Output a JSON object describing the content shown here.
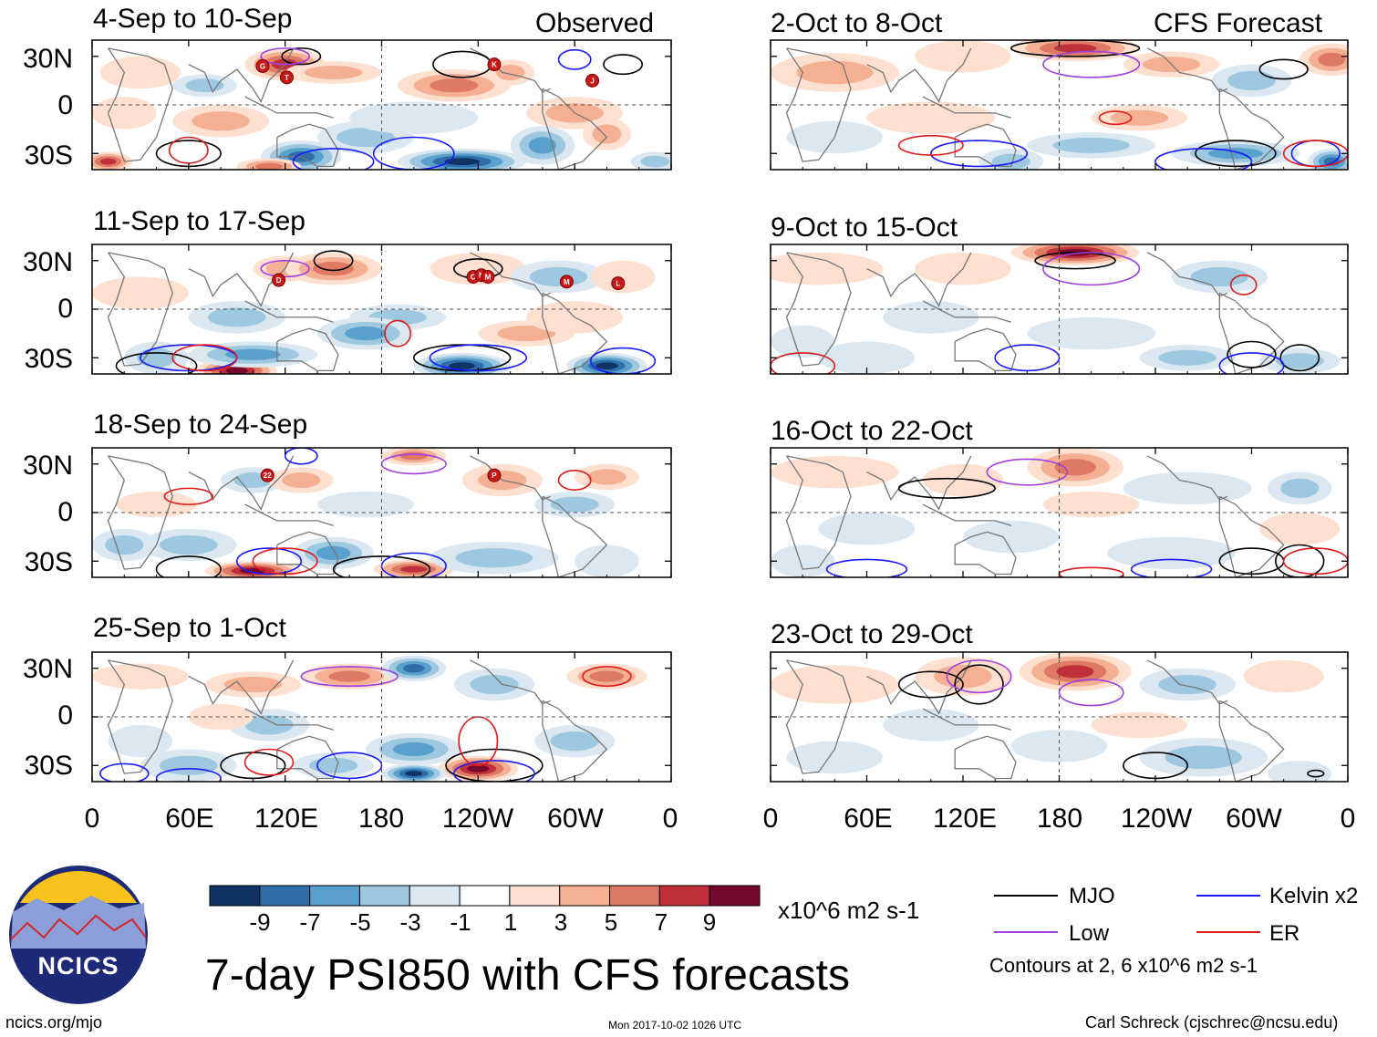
{
  "colors": {
    "positive": [
      "#fde0d0",
      "#f5b093",
      "#de7a63",
      "#c0303a",
      "#75082c"
    ],
    "negative": [
      "#dbe8f2",
      "#9ec8e0",
      "#5aa0cc",
      "#2e6ea9",
      "#0d3463"
    ],
    "mjo": "#000000",
    "kelvin": "#1a1aff",
    "low": "#a040e0",
    "er": "#e01a1a",
    "coast": "#777777"
  },
  "chart_data": [
    {
      "type": "heatmap",
      "id": "obs1",
      "title": "4-Sep to 10-Sep",
      "label": "Observed",
      "column": "Observed"
    },
    {
      "type": "heatmap",
      "id": "obs2",
      "title": "11-Sep to 17-Sep",
      "label": "",
      "column": "Observed"
    },
    {
      "type": "heatmap",
      "id": "obs3",
      "title": "18-Sep to 24-Sep",
      "label": "",
      "column": "Observed"
    },
    {
      "type": "heatmap",
      "id": "obs4",
      "title": "25-Sep to 1-Oct",
      "label": "",
      "column": "Observed"
    },
    {
      "type": "heatmap",
      "id": "fc1",
      "title": "2-Oct to 8-Oct",
      "label": "CFS Forecast",
      "column": "CFS Forecast"
    },
    {
      "type": "heatmap",
      "id": "fc2",
      "title": "9-Oct to 15-Oct",
      "label": "",
      "column": "CFS Forecast"
    },
    {
      "type": "heatmap",
      "id": "fc3",
      "title": "16-Oct to 22-Oct",
      "label": "",
      "column": "CFS Forecast"
    },
    {
      "type": "heatmap",
      "id": "fc4",
      "title": "23-Oct to 29-Oct",
      "label": "",
      "column": "CFS Forecast"
    }
  ],
  "axes": {
    "y_ticks": [
      "30N",
      "0",
      "30S"
    ],
    "y_values": [
      30,
      0,
      -30
    ],
    "ylim": [
      -40,
      40
    ],
    "x_ticks": [
      "0",
      "60E",
      "120E",
      "180",
      "120W",
      "60W",
      "0"
    ],
    "x_values": [
      0,
      60,
      120,
      180,
      240,
      300,
      360
    ],
    "xlim": [
      0,
      360
    ]
  },
  "colorbar": {
    "ticks": [
      "-9",
      "-7",
      "-5",
      "-3",
      "-1",
      "1",
      "3",
      "5",
      "7",
      "9"
    ],
    "units": "x10^6 m2 s-1",
    "levels": 11
  },
  "legend": {
    "mjo": "MJO",
    "low": "Low",
    "kelvin": "Kelvin x2",
    "er": "ER",
    "note": "Contours at 2, 6 x10^6 m2 s-1"
  },
  "title": "7-day PSI850 with CFS forecasts",
  "footer": {
    "left": "ncics.org/mjo",
    "center": "Mon 2017-10-02 1026 UTC",
    "right": "Carl Schreck (cjschrec@ncsu.edu)"
  },
  "logo": {
    "text": "NCICS"
  },
  "storms": [
    {
      "panel": 0,
      "label": "G",
      "lon": 106,
      "lat": 24
    },
    {
      "panel": 0,
      "label": "T",
      "lon": 121,
      "lat": 17
    },
    {
      "panel": 0,
      "label": "K",
      "lon": 250,
      "lat": 25
    },
    {
      "panel": 0,
      "label": "J",
      "lon": 311,
      "lat": 15
    },
    {
      "panel": 1,
      "label": "D",
      "lon": 116,
      "lat": 18
    },
    {
      "panel": 1,
      "label": "O",
      "lon": 237,
      "lat": 20
    },
    {
      "panel": 1,
      "label": "N",
      "lon": 242,
      "lat": 21
    },
    {
      "panel": 1,
      "label": "M",
      "lon": 246,
      "lat": 20
    },
    {
      "panel": 1,
      "label": "M",
      "lon": 295,
      "lat": 17
    },
    {
      "panel": 1,
      "label": "L",
      "lon": 327,
      "lat": 16
    },
    {
      "panel": 2,
      "label": "22",
      "lon": 109,
      "lat": 23
    },
    {
      "panel": 2,
      "label": "P",
      "lon": 250,
      "lat": 23
    }
  ]
}
